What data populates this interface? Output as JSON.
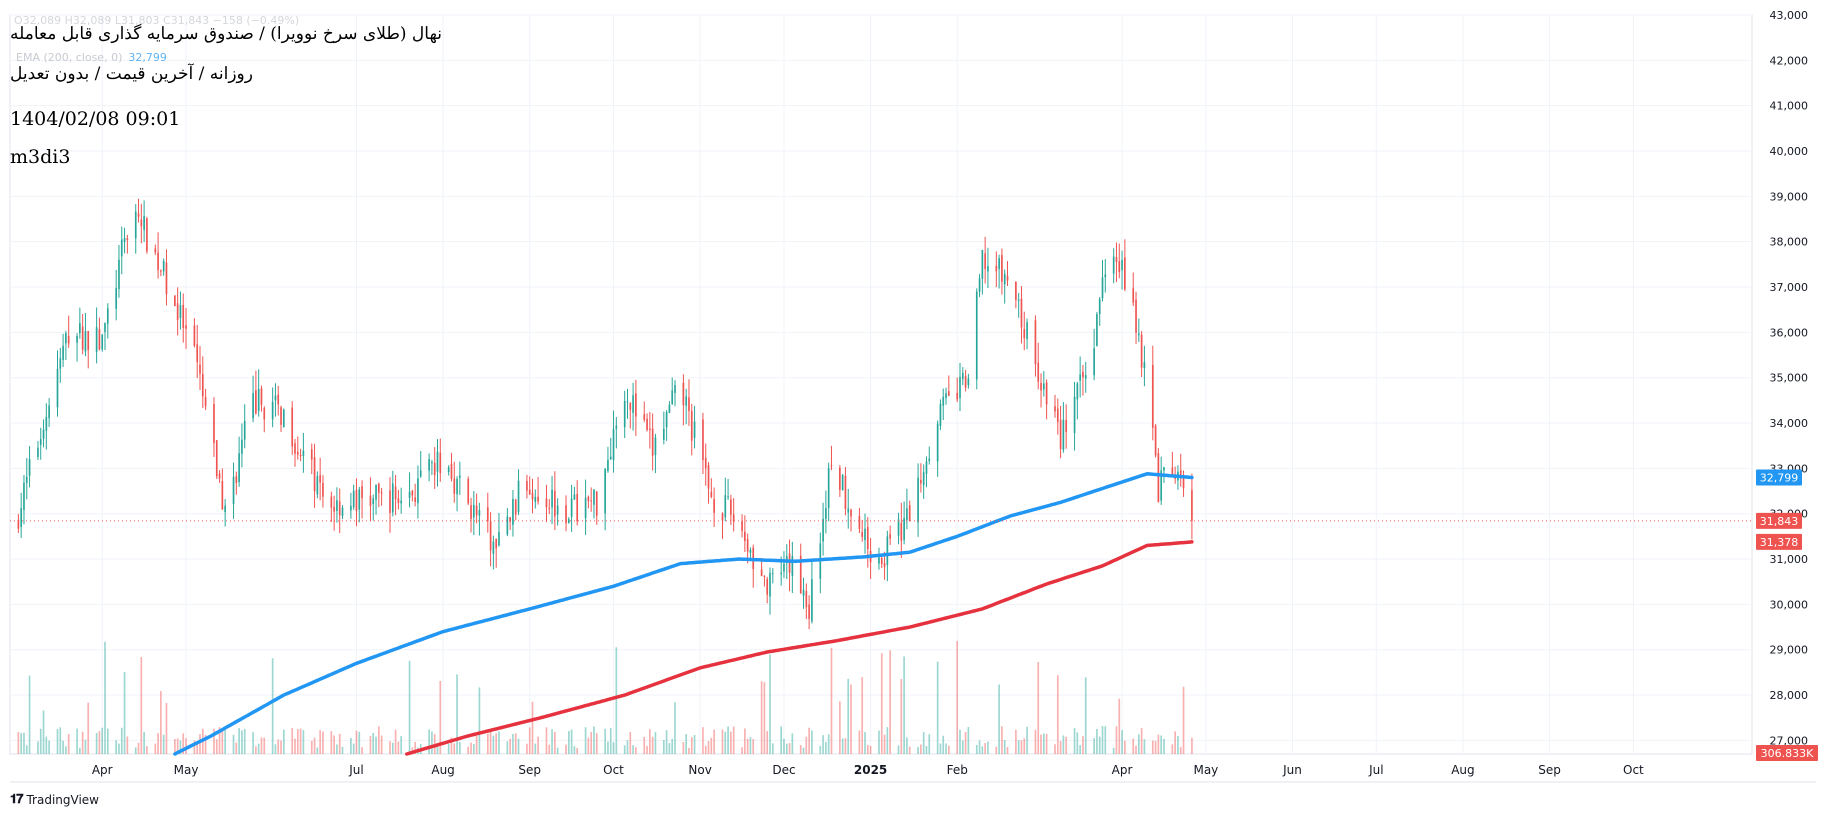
{
  "header": {
    "title": "نهال (طلای سرخ نوویرا) / صندوق سرمایه گذاری قابل معامله",
    "subtitle": "روزانه / آخرین قیمت / بدون تعدیل",
    "datetime": "1404/02/08 09:01",
    "author": "m3di3",
    "ohlc_line": "O32,089 H32,089 L31,803 C31,843 −158 (−0.49%)",
    "ema_label": "EMA (200, close, 0)",
    "ema_value": "32,799"
  },
  "brand": {
    "name": "TradingView",
    "icon": "tradingview-logo-icon"
  },
  "colors": {
    "up": "#26a69a",
    "down": "#ef5350",
    "ema_blue": "#2196f3",
    "ema_red": "#e5323e",
    "grid": "#f0f3fa",
    "axis_text": "#131722"
  },
  "chart_data": {
    "type": "candlestick",
    "y_axis": {
      "min": 26700,
      "max": 43000,
      "ticks": [
        "43,000",
        "42,000",
        "41,000",
        "40,000",
        "39,000",
        "38,000",
        "37,000",
        "36,000",
        "35,000",
        "34,000",
        "33,000",
        "32,000",
        "31,000",
        "30,000",
        "29,000",
        "28,000",
        "27,000"
      ]
    },
    "x_axis": {
      "labels": [
        "Apr",
        "May",
        "Jul",
        "Aug",
        "Sep",
        "Oct",
        "Nov",
        "Dec",
        "2025",
        "Feb",
        "Apr",
        "May",
        "Jun",
        "Jul",
        "Aug",
        "Sep",
        "Oct"
      ]
    },
    "grid": true,
    "price_key_points": [
      [
        "2024-03-01",
        31800
      ],
      [
        "2024-03-20",
        36000
      ],
      [
        "2024-04-01",
        35800
      ],
      [
        "2024-04-12",
        38800
      ],
      [
        "2024-04-25",
        37000
      ],
      [
        "2024-05-05",
        35200
      ],
      [
        "2024-05-15",
        32000
      ],
      [
        "2024-05-25",
        34500
      ],
      [
        "2024-06-05",
        34200
      ],
      [
        "2024-06-20",
        32200
      ],
      [
        "2024-07-05",
        32300
      ],
      [
        "2024-07-20",
        32400
      ],
      [
        "2024-08-01",
        33200
      ],
      [
        "2024-08-20",
        31200
      ],
      [
        "2024-08-30",
        32700
      ],
      [
        "2024-09-15",
        32100
      ],
      [
        "2024-09-25",
        32300
      ],
      [
        "2024-10-05",
        34800
      ],
      [
        "2024-10-15",
        33400
      ],
      [
        "2024-10-25",
        34800
      ],
      [
        "2024-11-05",
        32400
      ],
      [
        "2024-11-15",
        31800
      ],
      [
        "2024-11-25",
        30300
      ],
      [
        "2024-12-05",
        30900
      ],
      [
        "2024-12-10",
        29900
      ],
      [
        "2024-12-18",
        33200
      ],
      [
        "2024-12-30",
        31400
      ],
      [
        "2025-01-05",
        31000
      ],
      [
        "2025-01-15",
        32000
      ],
      [
        "2025-01-25",
        34200
      ],
      [
        "2025-02-05",
        35000
      ],
      [
        "2025-02-10",
        37600
      ],
      [
        "2025-02-20",
        37100
      ],
      [
        "2025-03-01",
        35300
      ],
      [
        "2025-03-10",
        33700
      ],
      [
        "2025-03-20",
        35200
      ],
      [
        "2025-03-28",
        38200
      ],
      [
        "2025-04-05",
        36600
      ],
      [
        "2025-04-10",
        34800
      ],
      [
        "2025-04-14",
        32600
      ],
      [
        "2025-04-20",
        32900
      ],
      [
        "2025-04-26",
        31843
      ]
    ],
    "ema_blue_key_points": [
      [
        "2024-04-27",
        26700
      ],
      [
        "2024-05-10",
        27100
      ],
      [
        "2024-06-05",
        28000
      ],
      [
        "2024-07-01",
        28700
      ],
      [
        "2024-08-01",
        29400
      ],
      [
        "2024-09-01",
        29900
      ],
      [
        "2024-10-01",
        30400
      ],
      [
        "2024-10-25",
        30900
      ],
      [
        "2024-11-15",
        31000
      ],
      [
        "2024-12-05",
        30950
      ],
      [
        "2024-12-30",
        31050
      ],
      [
        "2025-01-15",
        31150
      ],
      [
        "2025-02-01",
        31500
      ],
      [
        "2025-02-20",
        31950
      ],
      [
        "2025-03-10",
        32250
      ],
      [
        "2025-04-01",
        32700
      ],
      [
        "2025-04-10",
        32880
      ],
      [
        "2025-04-26",
        32799
      ]
    ],
    "ema_red_key_points": [
      [
        "2024-07-19",
        26700
      ],
      [
        "2024-08-10",
        27100
      ],
      [
        "2024-09-05",
        27500
      ],
      [
        "2024-10-05",
        28000
      ],
      [
        "2024-11-01",
        28600
      ],
      [
        "2024-11-25",
        28950
      ],
      [
        "2024-12-20",
        29200
      ],
      [
        "2025-01-15",
        29500
      ],
      [
        "2025-02-10",
        29900
      ],
      [
        "2025-03-05",
        30450
      ],
      [
        "2025-03-25",
        30850
      ],
      [
        "2025-04-10",
        31300
      ],
      [
        "2025-04-26",
        31378
      ]
    ],
    "price_badges": [
      {
        "label": "32,799",
        "value": 32799,
        "color": "#2196f3"
      },
      {
        "label": "31,843",
        "value": 31843,
        "color": "#ef5350"
      },
      {
        "label": "31,378",
        "value": 31378,
        "color": "#ef5350"
      }
    ],
    "volume_badge": {
      "label": "306.833K",
      "color": "#ef5350"
    },
    "last_close": 31843
  }
}
